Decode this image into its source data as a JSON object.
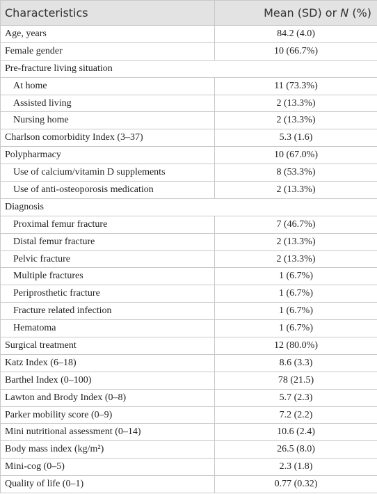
{
  "header": {
    "col1": "Characteristics",
    "col2": [
      "Mean (SD) or",
      "N",
      "(%)"
    ]
  },
  "rows": [
    {
      "label": "Age, years",
      "value": "84.2 (4.0)"
    },
    {
      "label": "Female gender",
      "value": "10 (66.7%)"
    },
    {
      "label": "Pre-fracture living situation",
      "sub": [
        {
          "label": "At home",
          "value": "11 (73.3%)"
        },
        {
          "label": "Assisted living",
          "value": "2 (13.3%)"
        },
        {
          "label": "Nursing home",
          "value": "2 (13.3%)"
        }
      ]
    },
    {
      "label": "Charlson comorbidity Index (3–37)",
      "value": "5.3 (1.6)"
    },
    {
      "label": "Polypharmacy",
      "value": "10 (67.0%)",
      "sub": [
        {
          "label": "Use of calcium/vitamin D supplements",
          "value": "8 (53.3%)"
        },
        {
          "label": "Use of anti-osteoporosis medication",
          "value": "2 (13.3%)"
        }
      ]
    },
    {
      "label": "Diagnosis",
      "sub": [
        {
          "label": "Proximal femur fracture",
          "value": "7 (46.7%)"
        },
        {
          "label": "Distal femur fracture",
          "value": "2 (13.3%)"
        },
        {
          "label": "Pelvic fracture",
          "value": "2 (13.3%)"
        },
        {
          "label": "Multiple fractures",
          "value": "1 (6.7%)"
        },
        {
          "label": "Periprosthetic fracture",
          "value": "1 (6.7%)"
        },
        {
          "label": "Fracture related infection",
          "value": "1 (6.7%)"
        },
        {
          "label": "Hematoma",
          "value": "1 (6.7%)"
        }
      ]
    },
    {
      "label": "Surgical treatment",
      "value": "12 (80.0%)"
    },
    {
      "label": "Katz Index (6–18)",
      "value": "8.6 (3.3)"
    },
    {
      "label": "Barthel Index (0–100)",
      "value": "78 (21.5)"
    },
    {
      "label": "Lawton and Brody Index (0–8)",
      "value": "5.7 (2.3)"
    },
    {
      "label": "Parker mobility score (0–9)",
      "value": "7.2 (2.2)"
    },
    {
      "label": "Mini nutritional assessment (0–14)",
      "value": "10.6 (2.4)"
    },
    {
      "label": "Body mass index (kg/m²)",
      "value": "26.5 (8.0)"
    },
    {
      "label": "Mini-cog (0–5)",
      "value": "2.3 (1.8)"
    },
    {
      "label": "Quality of life (0–1)",
      "value": "0.77 (0.32)"
    }
  ]
}
